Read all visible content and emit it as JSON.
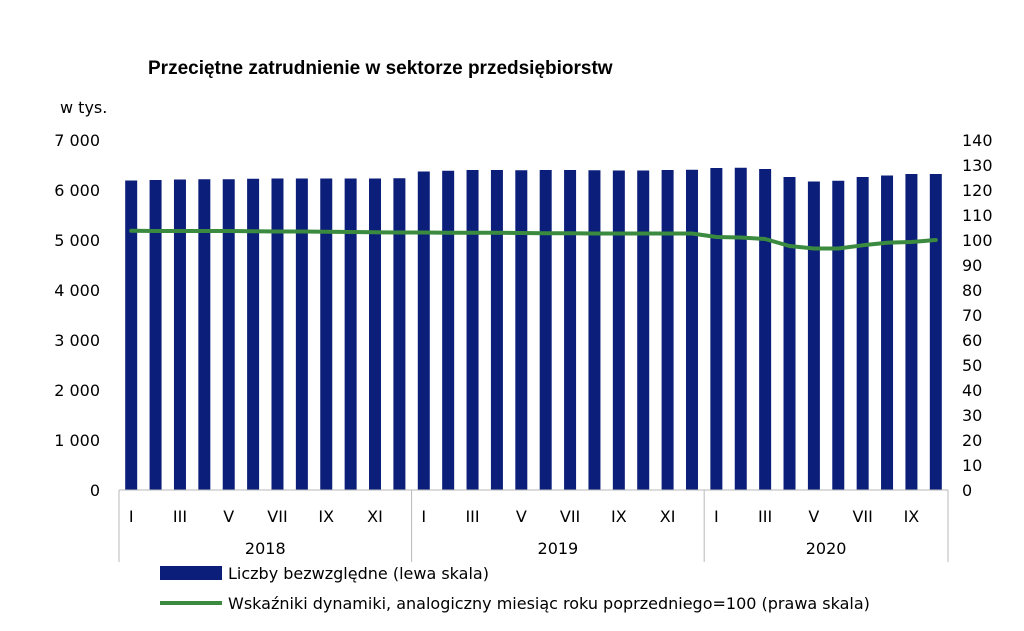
{
  "chart_data": {
    "type": "bar",
    "title": "Przeciętne zatrudnienie w sektorze przedsiębiorstw",
    "y_left_unit": "w tys.",
    "y_left_lim": [
      0,
      7000
    ],
    "y_left_ticks": [
      0,
      1000,
      2000,
      3000,
      4000,
      5000,
      6000,
      7000
    ],
    "y_left_tick_labels": [
      "0",
      "1 000",
      "2 000",
      "3 000",
      "4 000",
      "5 000",
      "6 000",
      "7 000"
    ],
    "y_right_lim": [
      0,
      140
    ],
    "y_right_ticks": [
      0,
      10,
      20,
      30,
      40,
      50,
      60,
      70,
      80,
      90,
      100,
      110,
      120,
      130,
      140
    ],
    "month_labels": [
      "I",
      "",
      "III",
      "",
      "V",
      "",
      "VII",
      "",
      "IX",
      "",
      "XI",
      "",
      "I",
      "",
      "III",
      "",
      "V",
      "",
      "VII",
      "",
      "IX",
      "",
      "XI",
      "",
      "I",
      "",
      "III",
      "",
      "V",
      "",
      "VII",
      "",
      "IX",
      ""
    ],
    "years": [
      {
        "label": "2018",
        "months": 12
      },
      {
        "label": "2019",
        "months": 12
      },
      {
        "label": "2020",
        "months": 10
      }
    ],
    "series": [
      {
        "name": "Liczby bezwzględne (lewa skala)",
        "type": "bar",
        "axis": "left",
        "color": "#0b1f7a",
        "values": [
          6190,
          6200,
          6210,
          6215,
          6215,
          6225,
          6230,
          6230,
          6230,
          6230,
          6230,
          6235,
          6370,
          6385,
          6400,
          6400,
          6395,
          6400,
          6400,
          6395,
          6390,
          6390,
          6400,
          6405,
          6440,
          6445,
          6420,
          6260,
          6170,
          6185,
          6260,
          6290,
          6320,
          6320
        ]
      },
      {
        "name": "Wskaźniki dynamiki, analogiczny miesiąc roku poprzedniego=100 (prawa skala)",
        "type": "line",
        "axis": "right",
        "color": "#3a8a3f",
        "values": [
          103.7,
          103.6,
          103.6,
          103.6,
          103.6,
          103.5,
          103.4,
          103.4,
          103.3,
          103.2,
          103.1,
          103.0,
          103.0,
          102.9,
          102.9,
          102.9,
          102.8,
          102.7,
          102.7,
          102.6,
          102.6,
          102.6,
          102.6,
          102.6,
          101.2,
          101.0,
          100.4,
          97.6,
          96.6,
          96.6,
          97.9,
          98.9,
          99.2,
          100.0
        ]
      }
    ]
  }
}
